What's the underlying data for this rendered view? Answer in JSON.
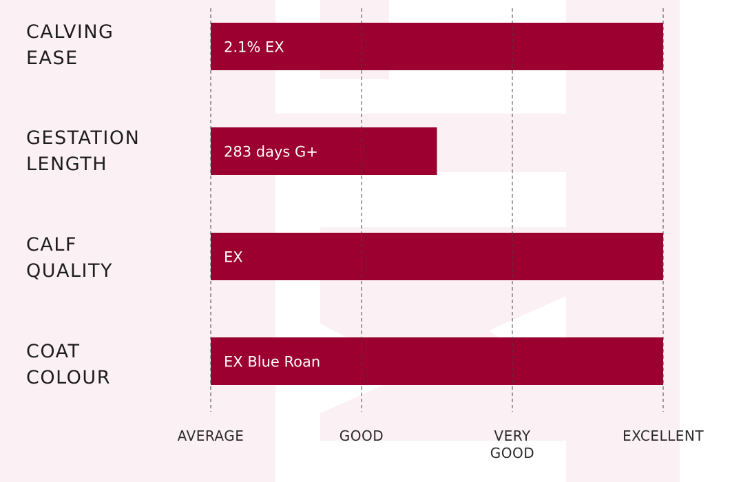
{
  "chart_data": {
    "type": "bar",
    "orientation": "horizontal",
    "categories": [
      [
        "CALVING",
        "EASE"
      ],
      [
        "GESTATION",
        "LENGTH"
      ],
      [
        "CALF",
        "QUALITY"
      ],
      [
        "COAT",
        "COLOUR"
      ]
    ],
    "values": [
      3,
      1.5,
      3,
      3
    ],
    "data_labels": [
      "2.1% EX",
      "283 days G+",
      "EX",
      "EX Blue Roan"
    ],
    "ticks": [
      [
        "AVERAGE"
      ],
      [
        "GOOD"
      ],
      [
        "VERY",
        "GOOD"
      ],
      [
        "EXCELLENT"
      ]
    ],
    "xlim": [
      0,
      3
    ],
    "grid": true,
    "bar_color": "#9b0030",
    "grid_color": "#444444",
    "watermark_color": "#fbf0f3"
  }
}
